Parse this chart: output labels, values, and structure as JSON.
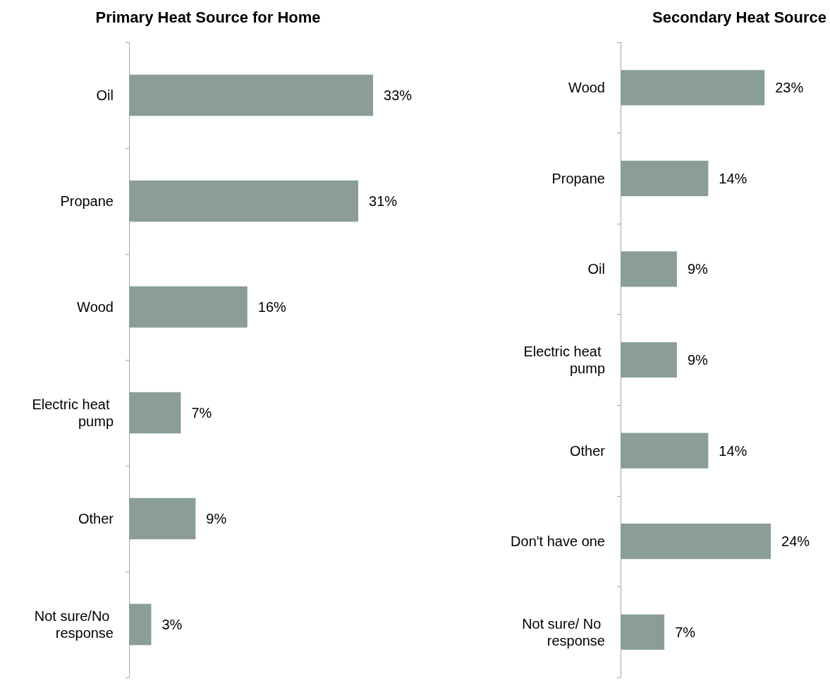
{
  "chart_data": [
    {
      "type": "bar",
      "title": "Primary Heat Source for Home",
      "orientation": "horizontal",
      "categories": [
        "Oil",
        "Propane",
        "Wood",
        "Electric heat pump",
        "Other",
        "Not sure/No response"
      ],
      "values": [
        33,
        31,
        16,
        7,
        9,
        3
      ],
      "value_labels": [
        "33%",
        "31%",
        "16%",
        "7%",
        "9%",
        "3%"
      ],
      "color": "#8a9e96"
    },
    {
      "type": "bar",
      "title": "Secondary Heat Source",
      "orientation": "horizontal",
      "categories": [
        "Wood",
        "Propane",
        "Oil",
        "Electric heat pump",
        "Other",
        "Don't have one",
        "Not sure/ No response"
      ],
      "values": [
        23,
        14,
        9,
        9,
        14,
        24,
        7
      ],
      "value_labels": [
        "23%",
        "14%",
        "9%",
        "9%",
        "14%",
        "24%",
        "7%"
      ],
      "color": "#8a9e96"
    }
  ]
}
